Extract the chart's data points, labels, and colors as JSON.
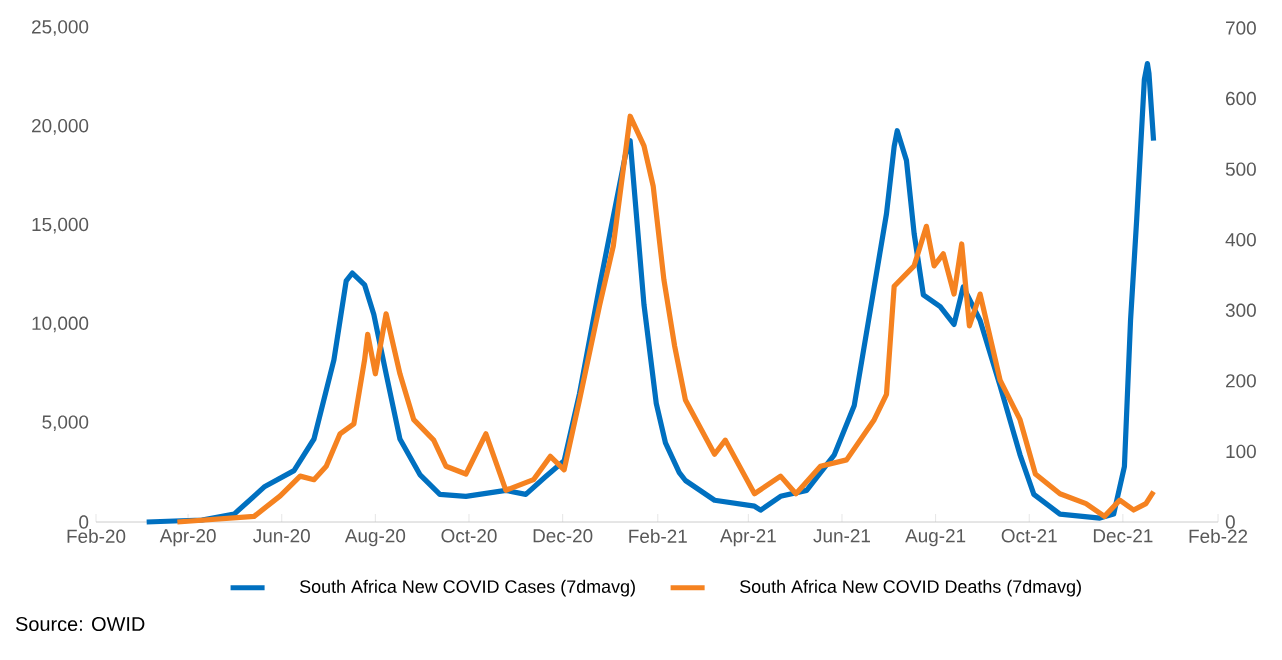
{
  "chart_data": {
    "type": "line",
    "xlim": [
      "2020-02-01",
      "2022-02-01"
    ],
    "xticks": [
      {
        "value": "2020-02-01",
        "label": "Feb-20"
      },
      {
        "value": "2020-04-01",
        "label": "Apr-20"
      },
      {
        "value": "2020-06-01",
        "label": "Jun-20"
      },
      {
        "value": "2020-08-01",
        "label": "Aug-20"
      },
      {
        "value": "2020-10-01",
        "label": "Oct-20"
      },
      {
        "value": "2020-12-01",
        "label": "Dec-20"
      },
      {
        "value": "2021-02-01",
        "label": "Feb-21"
      },
      {
        "value": "2021-04-01",
        "label": "Apr-21"
      },
      {
        "value": "2021-06-01",
        "label": "Jun-21"
      },
      {
        "value": "2021-08-01",
        "label": "Aug-21"
      },
      {
        "value": "2021-10-01",
        "label": "Oct-21"
      },
      {
        "value": "2021-12-01",
        "label": "Dec-21"
      },
      {
        "value": "2022-02-01",
        "label": "Feb-22"
      }
    ],
    "ylim": [
      0,
      25000
    ],
    "yticks": [
      0,
      {
        "value": 5000,
        "label": "5,000"
      },
      {
        "value": 10000,
        "label": "10,000"
      },
      {
        "value": 15000,
        "label": "15,000"
      },
      {
        "value": 20000,
        "label": "20,000"
      },
      {
        "value": 25000,
        "label": "25,000"
      }
    ],
    "y2lim": [
      0,
      700
    ],
    "y2ticks": [
      0,
      100,
      200,
      300,
      400,
      500,
      600,
      700
    ],
    "grid": false,
    "legend": "bottom",
    "marker": "none",
    "line_style": "solid",
    "annotations": [
      "Source: OWID"
    ],
    "series": [
      {
        "name": "South Africa New COVID Cases (7dmavg)",
        "color": "#0070c0",
        "x": [
          "2020-03-05",
          "2020-04-10",
          "2020-05-01",
          "2020-05-21",
          "2020-06-09",
          "2020-06-22",
          "2020-07-05",
          "2020-07-13",
          "2020-07-17",
          "2020-07-25",
          "2020-07-31",
          "2020-08-08",
          "2020-08-17",
          "2020-08-30",
          "2020-09-12",
          "2020-09-29",
          "2020-10-25",
          "2020-11-07",
          "2020-11-20",
          "2020-12-02",
          "2020-12-12",
          "2020-12-25",
          "2021-01-11",
          "2021-01-14",
          "2021-01-23",
          "2021-01-31",
          "2021-02-06",
          "2021-02-15",
          "2021-02-19",
          "2021-03-10",
          "2021-04-05",
          "2021-04-09",
          "2021-04-22",
          "2021-05-09",
          "2021-05-27",
          "2021-06-09",
          "2021-06-22",
          "2021-06-30",
          "2021-07-05",
          "2021-07-07",
          "2021-07-13",
          "2021-07-18",
          "2021-07-24",
          "2021-08-04",
          "2021-08-13",
          "2021-08-19",
          "2021-08-30",
          "2021-09-12",
          "2021-09-25",
          "2021-10-04",
          "2021-10-21",
          "2021-11-16",
          "2021-11-25",
          "2021-12-02",
          "2021-12-06",
          "2021-12-10",
          "2021-12-15",
          "2021-12-17",
          "2021-12-18",
          "2021-12-21"
        ],
        "values": [
          0,
          100,
          400,
          1800,
          2600,
          4200,
          8200,
          12200,
          12600,
          12000,
          10500,
          7500,
          4200,
          2400,
          1400,
          1300,
          1600,
          1400,
          2300,
          3100,
          6500,
          11900,
          18600,
          19300,
          11000,
          6000,
          4000,
          2500,
          2100,
          1100,
          800,
          600,
          1300,
          1600,
          3400,
          5900,
          11900,
          15600,
          19000,
          19800,
          18300,
          14600,
          11500,
          10900,
          10000,
          11900,
          10200,
          6900,
          3400,
          1400,
          400,
          200,
          400,
          2800,
          10200,
          15300,
          22400,
          23200,
          22700,
          19300
        ]
      },
      {
        "name": "South Africa New COVID Deaths (7dmavg)",
        "color": "#f58220",
        "axis": "y2",
        "x": [
          "2020-03-25",
          "2020-05-14",
          "2020-05-31",
          "2020-06-13",
          "2020-06-22",
          "2020-06-30",
          "2020-07-09",
          "2020-07-18",
          "2020-07-25",
          "2020-07-27",
          "2020-08-01",
          "2020-08-08",
          "2020-08-17",
          "2020-08-26",
          "2020-09-08",
          "2020-09-16",
          "2020-09-29",
          "2020-10-12",
          "2020-10-25",
          "2020-11-12",
          "2020-11-23",
          "2020-12-02",
          "2020-12-12",
          "2020-12-25",
          "2021-01-03",
          "2021-01-14",
          "2021-01-23",
          "2021-01-29",
          "2021-02-05",
          "2021-02-12",
          "2021-02-19",
          "2021-03-10",
          "2021-03-17",
          "2021-04-05",
          "2021-04-22",
          "2021-05-02",
          "2021-05-18",
          "2021-06-04",
          "2021-06-22",
          "2021-06-30",
          "2021-07-05",
          "2021-07-18",
          "2021-07-26",
          "2021-07-31",
          "2021-08-06",
          "2021-08-13",
          "2021-08-18",
          "2021-08-23",
          "2021-08-30",
          "2021-09-12",
          "2021-09-25",
          "2021-10-05",
          "2021-10-21",
          "2021-11-07",
          "2021-11-19",
          "2021-11-29",
          "2021-12-08",
          "2021-12-16",
          "2021-12-21"
        ],
        "values": [
          0,
          8,
          37,
          65,
          60,
          79,
          125,
          139,
          230,
          266,
          210,
          295,
          210,
          145,
          116,
          79,
          68,
          125,
          45,
          60,
          93,
          74,
          173,
          306,
          391,
          575,
          533,
          476,
          343,
          249,
          173,
          96,
          116,
          40,
          65,
          40,
          79,
          88,
          145,
          181,
          334,
          363,
          419,
          363,
          380,
          323,
          394,
          278,
          323,
          201,
          145,
          68,
          40,
          26,
          8,
          31,
          17,
          26,
          43
        ]
      }
    ]
  }
}
